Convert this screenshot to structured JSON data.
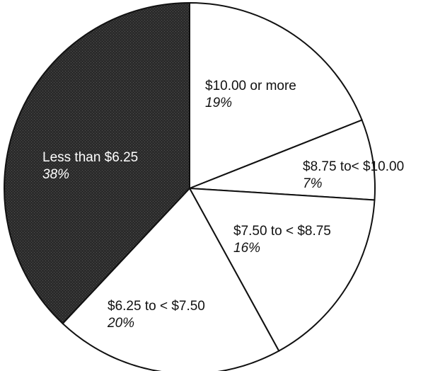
{
  "chart_data": {
    "type": "pie",
    "title": "",
    "start_at": "top",
    "direction": "clockwise",
    "slices": [
      {
        "label": "$10.00 or more",
        "value": 19,
        "pct_label": "19%",
        "color": "#ffffff",
        "text_color": "#111111"
      },
      {
        "label": "$8.75 to< $10.00",
        "value": 7,
        "pct_label": "7%",
        "color": "#ffffff",
        "text_color": "#111111"
      },
      {
        "label": "$7.50 to < $8.75",
        "value": 16,
        "pct_label": "16%",
        "color": "#ffffff",
        "text_color": "#111111"
      },
      {
        "label": "$6.25 to < $7.50",
        "value": 20,
        "pct_label": "20%",
        "color": "#ffffff",
        "text_color": "#111111"
      },
      {
        "label": "Less than $6.25",
        "value": 38,
        "pct_label": "38%",
        "color": "#2b2b2b",
        "text_color": "#ffffff"
      }
    ]
  }
}
